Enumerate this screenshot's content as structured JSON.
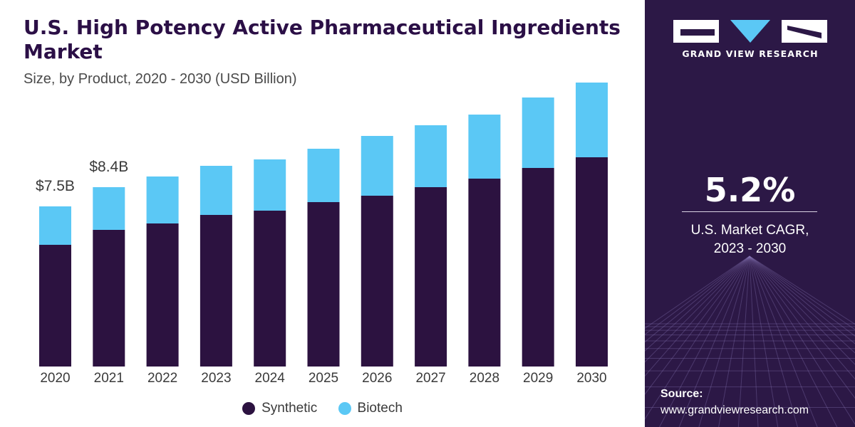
{
  "chart_data": {
    "type": "bar",
    "stacked": true,
    "title": "U.S. High Potency Active Pharmaceutical Ingredients Market",
    "subtitle": "Size, by Product, 2020 - 2030 (USD Billion)",
    "categories": [
      "2020",
      "2021",
      "2022",
      "2023",
      "2024",
      "2025",
      "2026",
      "2027",
      "2028",
      "2029",
      "2030"
    ],
    "series": [
      {
        "name": "Synthetic",
        "color": "#2c1240",
        "values": [
          5.7,
          6.4,
          6.7,
          7.1,
          7.3,
          7.7,
          8.0,
          8.4,
          8.8,
          9.3,
          9.8
        ]
      },
      {
        "name": "Biotech",
        "color": "#5bc8f5",
        "values": [
          1.8,
          2.0,
          2.2,
          2.3,
          2.4,
          2.5,
          2.8,
          2.9,
          3.0,
          3.3,
          3.5
        ]
      }
    ],
    "data_labels": [
      {
        "category": "2020",
        "text": "$7.5B"
      },
      {
        "category": "2021",
        "text": "$8.4B"
      }
    ],
    "ylim": [
      0,
      14
    ],
    "grid": false,
    "legend_position": "bottom-center"
  },
  "panel": {
    "brand_name": "GRAND VIEW RESEARCH",
    "cagr_value": "5.2%",
    "cagr_label_line1": "U.S. Market CAGR,",
    "cagr_label_line2": "2023 - 2030",
    "source_title": "Source:",
    "source_url": "www.grandviewresearch.com"
  },
  "colors": {
    "panel_bg": "#2c1846",
    "title": "#2b0f46"
  }
}
